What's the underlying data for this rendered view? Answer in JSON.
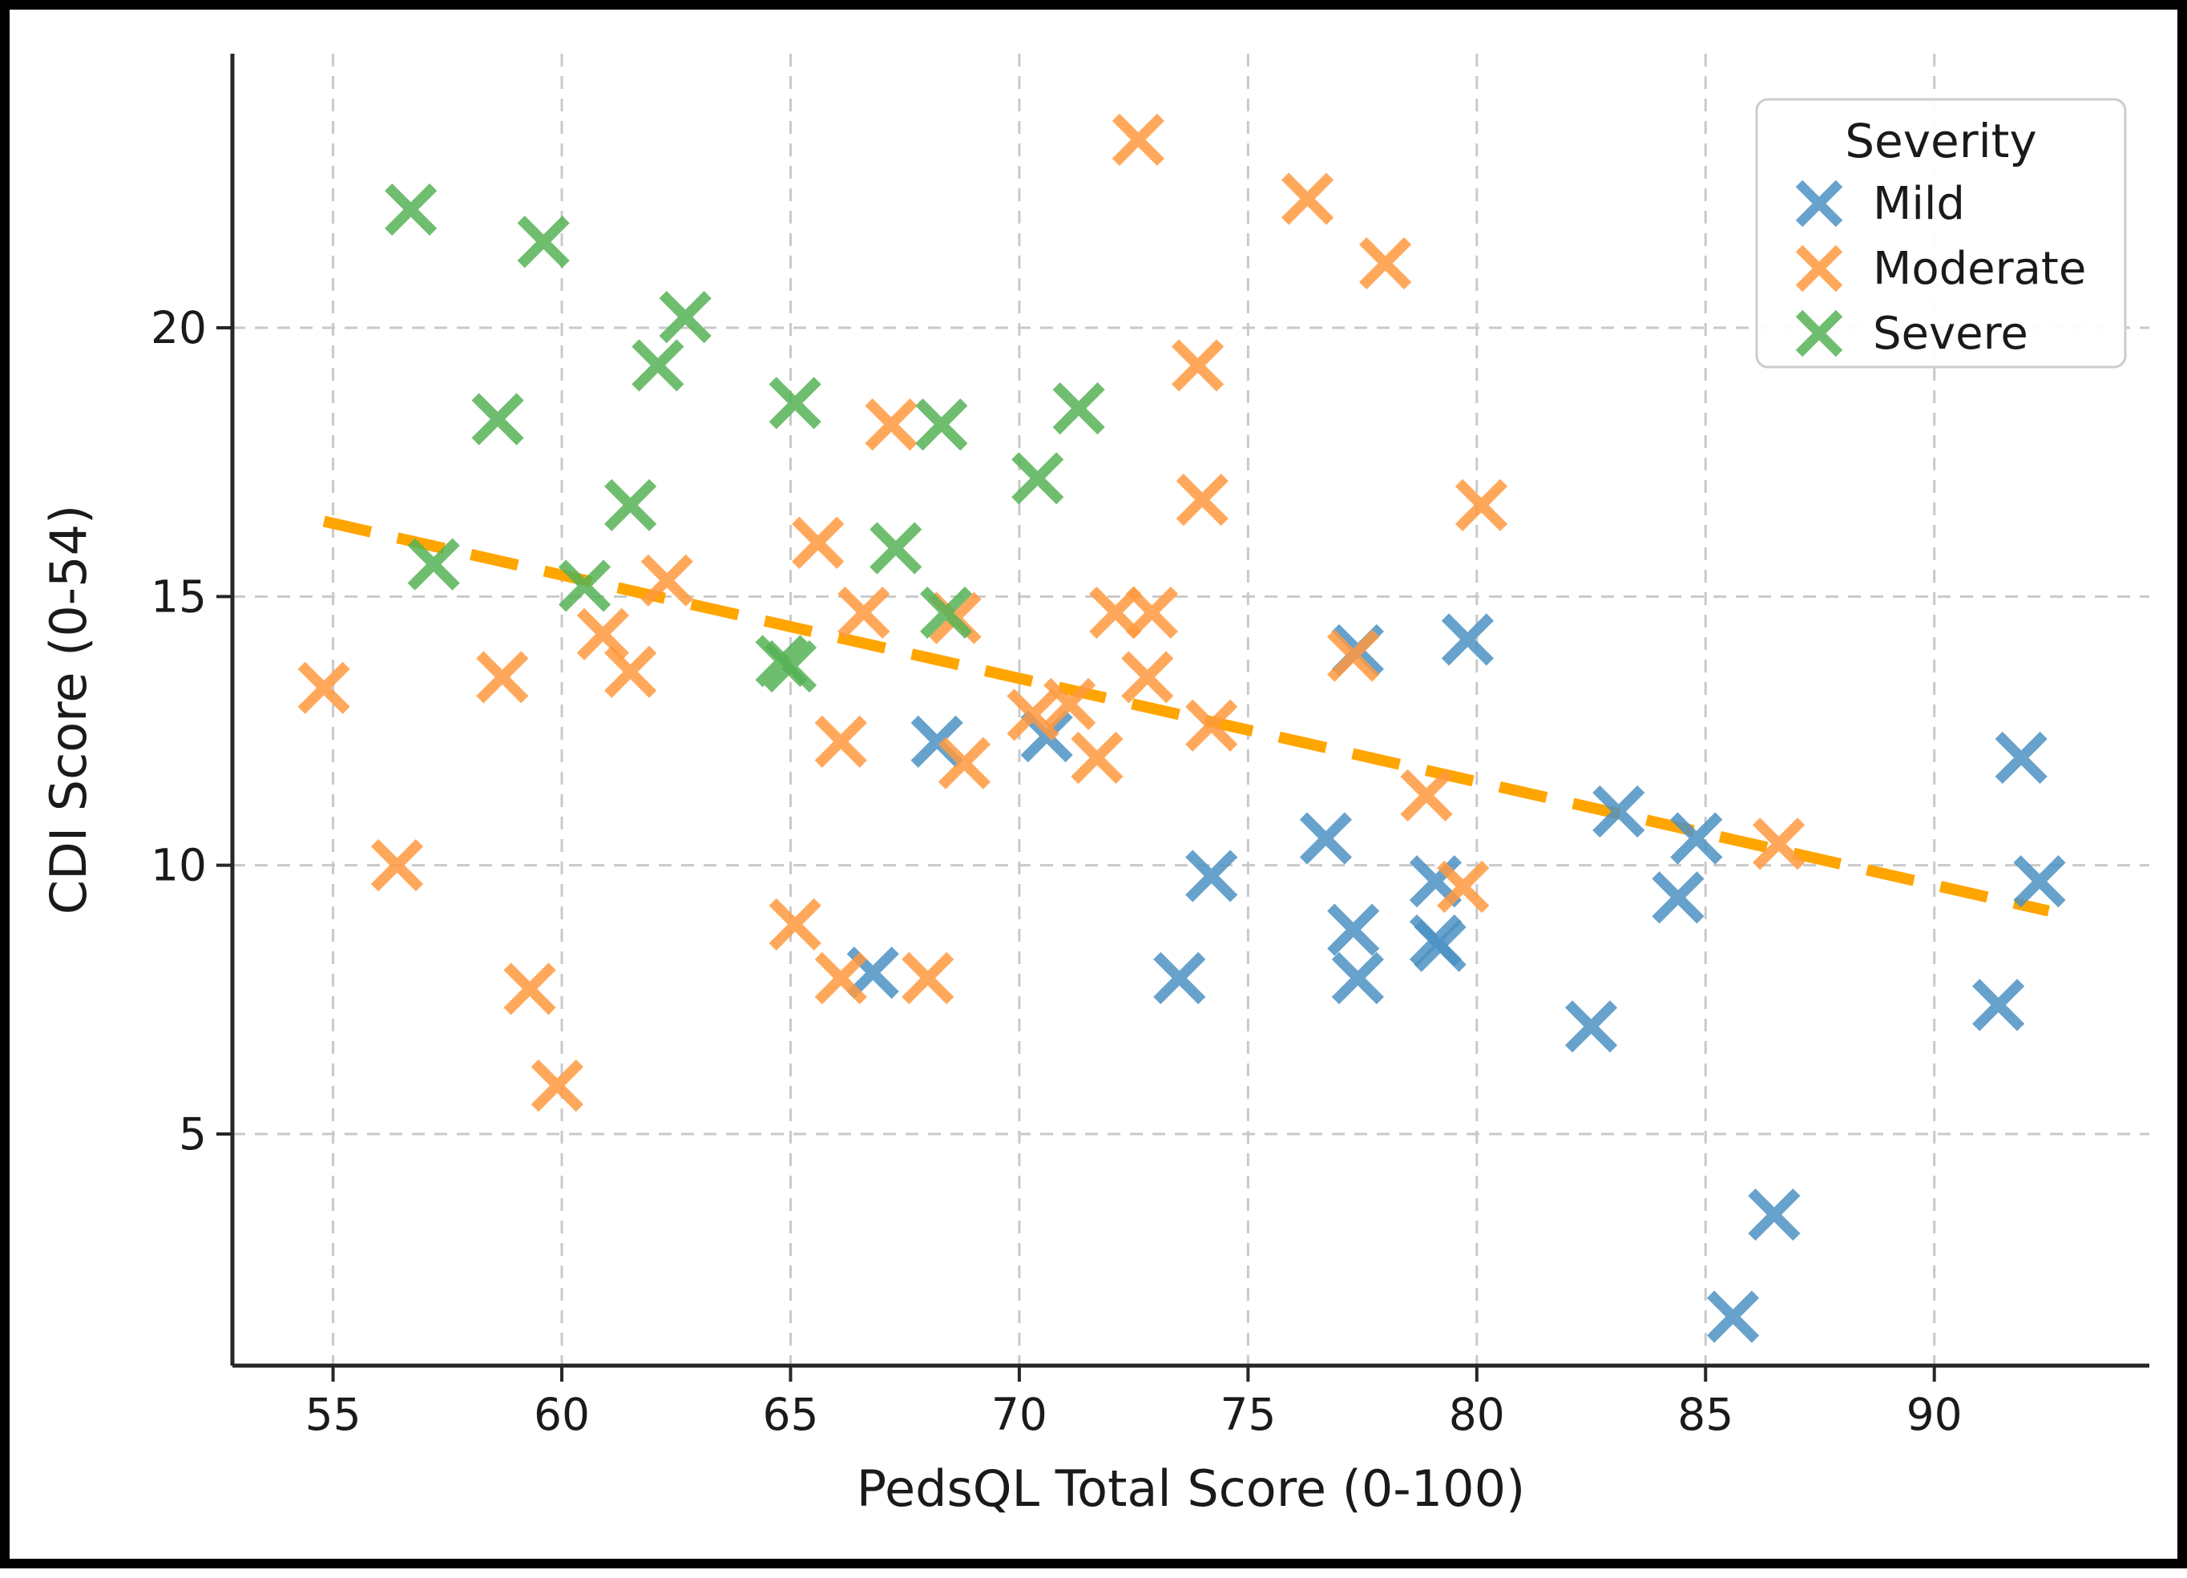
{
  "figure": {
    "background": "#ffffff",
    "border_color": "#000000",
    "text_color": "#1a1a1a",
    "spine_color": "#262626"
  },
  "chart_data": {
    "type": "scatter",
    "title": "",
    "xlabel": "PedsQL Total Score (0-100)",
    "ylabel": "CDI Score (0-54)",
    "xlim": [
      52.8,
      94.7
    ],
    "ylim": [
      0.69,
      25.1
    ],
    "x_ticks": [
      55,
      60,
      65,
      70,
      75,
      80,
      85,
      90
    ],
    "y_ticks": [
      5,
      10,
      15,
      20
    ],
    "grid": true,
    "grid_color": "#c9c9c9",
    "marker": "x",
    "marker_opacity": 0.85,
    "legend_title": "Severity",
    "legend_position": "upper right",
    "series": [
      {
        "name": "Mild",
        "color": "#4C92C3",
        "points": [
          [
            66.8,
            8.0
          ],
          [
            68.2,
            12.3
          ],
          [
            70.6,
            12.4
          ],
          [
            73.5,
            7.9
          ],
          [
            74.2,
            9.8
          ],
          [
            76.7,
            10.5
          ],
          [
            77.3,
            8.8
          ],
          [
            77.4,
            7.9
          ],
          [
            77.4,
            14.0
          ],
          [
            79.1,
            9.7
          ],
          [
            79.1,
            8.6
          ],
          [
            79.2,
            8.5
          ],
          [
            79.8,
            14.2
          ],
          [
            82.5,
            7.0
          ],
          [
            83.1,
            11.0
          ],
          [
            84.4,
            9.4
          ],
          [
            84.8,
            10.5
          ],
          [
            85.6,
            1.6
          ],
          [
            86.5,
            3.5
          ],
          [
            91.4,
            7.4
          ],
          [
            91.9,
            12.0
          ],
          [
            92.3,
            9.7
          ]
        ]
      },
      {
        "name": "Moderate",
        "color": "#FF993E",
        "points": [
          [
            54.8,
            13.3
          ],
          [
            56.4,
            10.0
          ],
          [
            58.7,
            13.5
          ],
          [
            59.3,
            7.7
          ],
          [
            59.9,
            5.9
          ],
          [
            60.9,
            14.3
          ],
          [
            61.5,
            13.6
          ],
          [
            62.3,
            15.3
          ],
          [
            65.1,
            8.9
          ],
          [
            65.6,
            16.0
          ],
          [
            66.1,
            12.3
          ],
          [
            66.1,
            7.9
          ],
          [
            66.6,
            14.7
          ],
          [
            67.2,
            18.2
          ],
          [
            68.0,
            7.9
          ],
          [
            68.6,
            14.6
          ],
          [
            68.8,
            11.9
          ],
          [
            70.3,
            12.8
          ],
          [
            71.1,
            13.0
          ],
          [
            71.7,
            12.0
          ],
          [
            72.1,
            14.7
          ],
          [
            72.6,
            23.5
          ],
          [
            72.8,
            13.5
          ],
          [
            72.9,
            14.7
          ],
          [
            73.9,
            19.3
          ],
          [
            74.0,
            16.8
          ],
          [
            74.2,
            12.6
          ],
          [
            76.3,
            22.4
          ],
          [
            77.3,
            13.9
          ],
          [
            78.0,
            21.2
          ],
          [
            78.9,
            11.3
          ],
          [
            79.7,
            9.6
          ],
          [
            80.1,
            16.7
          ],
          [
            86.6,
            10.4
          ]
        ]
      },
      {
        "name": "Severe",
        "color": "#56B356",
        "points": [
          [
            56.7,
            22.2
          ],
          [
            57.2,
            15.6
          ],
          [
            58.6,
            18.3
          ],
          [
            59.6,
            21.6
          ],
          [
            60.5,
            15.2
          ],
          [
            61.5,
            16.7
          ],
          [
            62.1,
            19.3
          ],
          [
            62.7,
            20.2
          ],
          [
            64.8,
            13.8
          ],
          [
            65.0,
            13.7
          ],
          [
            65.1,
            18.6
          ],
          [
            67.3,
            15.9
          ],
          [
            68.3,
            18.2
          ],
          [
            68.4,
            14.7
          ],
          [
            70.4,
            17.2
          ],
          [
            71.3,
            18.5
          ]
        ]
      }
    ],
    "trend_line": {
      "color": "#FFA500",
      "style": "dashed",
      "x": [
        54.8,
        92.5
      ],
      "y": [
        16.4,
        9.15
      ]
    }
  }
}
